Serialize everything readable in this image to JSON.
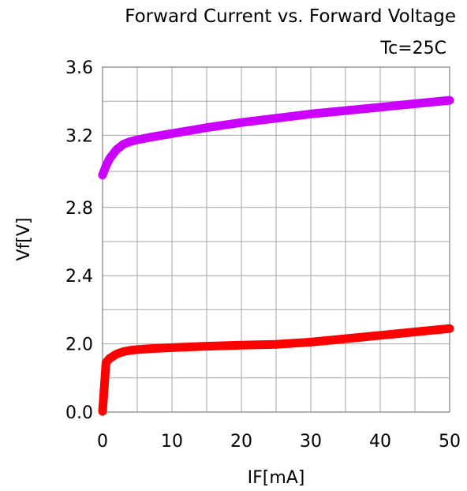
{
  "chart_data": {
    "type": "line",
    "title": "Forward Current vs. Forward Voltage",
    "subtitle": "Tc=25C",
    "xlabel": "IF[mA]",
    "ylabel": "Vf[V]",
    "xlim": [
      0,
      50
    ],
    "x_ticks": [
      "0",
      "10",
      "20",
      "30",
      "40",
      "50"
    ],
    "y_ticks": [
      "0.0",
      "2.0",
      "2.4",
      "2.8",
      "3.2",
      "3.6"
    ],
    "grid": true,
    "series": [
      {
        "color": "#cc00ff",
        "x": [
          0,
          0.5,
          1,
          2,
          3,
          4,
          5,
          7,
          10,
          15,
          20,
          25,
          30,
          35,
          40,
          45,
          50
        ],
        "y": [
          2.98,
          3.03,
          3.07,
          3.12,
          3.15,
          3.165,
          3.175,
          3.19,
          3.21,
          3.245,
          3.275,
          3.3,
          3.325,
          3.345,
          3.365,
          3.385,
          3.405
        ]
      },
      {
        "color": "#ff0000",
        "x": [
          0,
          0.5,
          1,
          2,
          3,
          4,
          5,
          7,
          10,
          15,
          20,
          25,
          30,
          35,
          40,
          45,
          50
        ],
        "y": [
          0.02,
          1.45,
          1.57,
          1.7,
          1.77,
          1.81,
          1.83,
          1.86,
          1.89,
          1.93,
          1.96,
          1.985,
          2.01,
          2.03,
          2.05,
          2.07,
          2.09
        ]
      }
    ]
  }
}
